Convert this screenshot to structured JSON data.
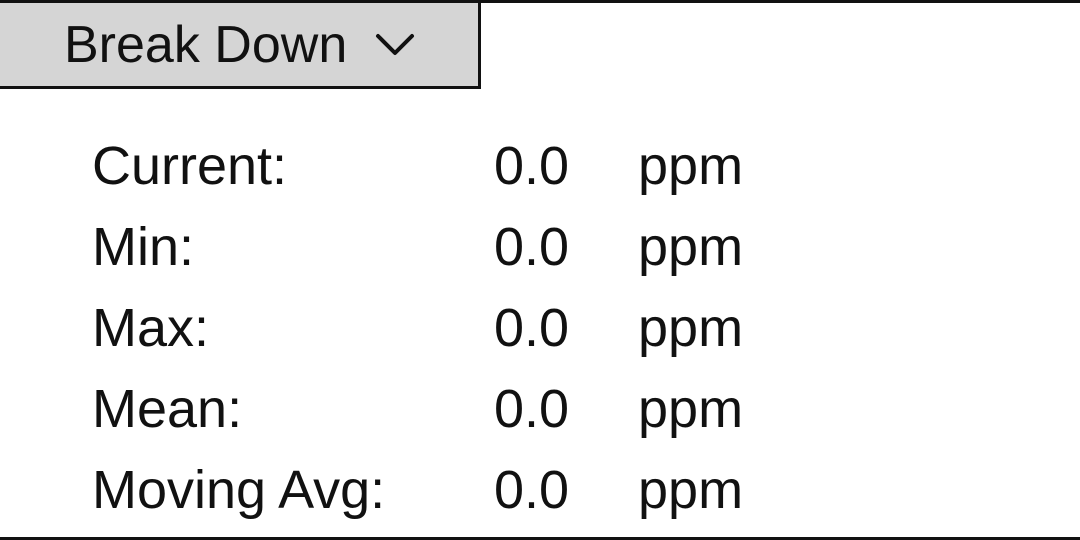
{
  "dropdown": {
    "label": "Break Down",
    "icon": "chevron-down-icon"
  },
  "stats": [
    {
      "key": "current",
      "label": "Current:",
      "value": "0.0",
      "unit": "ppm"
    },
    {
      "key": "min",
      "label": "Min:",
      "value": "0.0",
      "unit": "ppm"
    },
    {
      "key": "max",
      "label": "Max:",
      "value": "0.0",
      "unit": "ppm"
    },
    {
      "key": "mean",
      "label": "Mean:",
      "value": "0.0",
      "unit": "ppm"
    },
    {
      "key": "moving-avg",
      "label": "Moving Avg:",
      "value": "0.0",
      "unit": "ppm"
    }
  ],
  "colors": {
    "dropdown_bg": "#d5d5d5",
    "border": "#111111",
    "text": "#111111",
    "background": "#ffffff"
  }
}
